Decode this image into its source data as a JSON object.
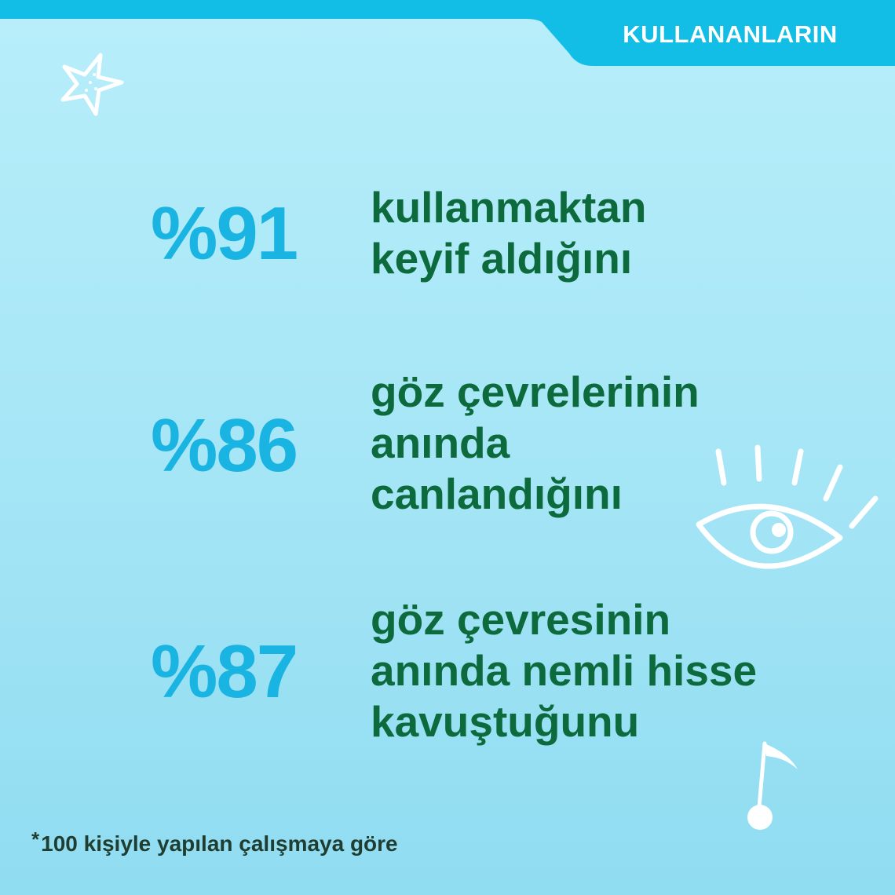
{
  "header": {
    "tab_label": "KULLANANLARIN"
  },
  "stats": [
    {
      "percent": "%91",
      "lines": [
        "kullanmaktan",
        "keyif aldığını"
      ]
    },
    {
      "percent": "%86",
      "lines": [
        "göz çevrelerinin",
        "anında",
        "canlandığını"
      ]
    },
    {
      "percent": "%87",
      "lines": [
        "göz çevresinin",
        "anında nemli hisse",
        "kavuştuğunu"
      ]
    }
  ],
  "footnote": {
    "asterisk": "*",
    "text": "100 kişiyle yapılan çalışmaya göre"
  },
  "icons": [
    "star-icon",
    "eye-icon",
    "music-note-icon"
  ],
  "colors": {
    "accent_blue": "#1ab4e2",
    "text_green": "#0c6a3c",
    "background": "#a6e6f6"
  }
}
